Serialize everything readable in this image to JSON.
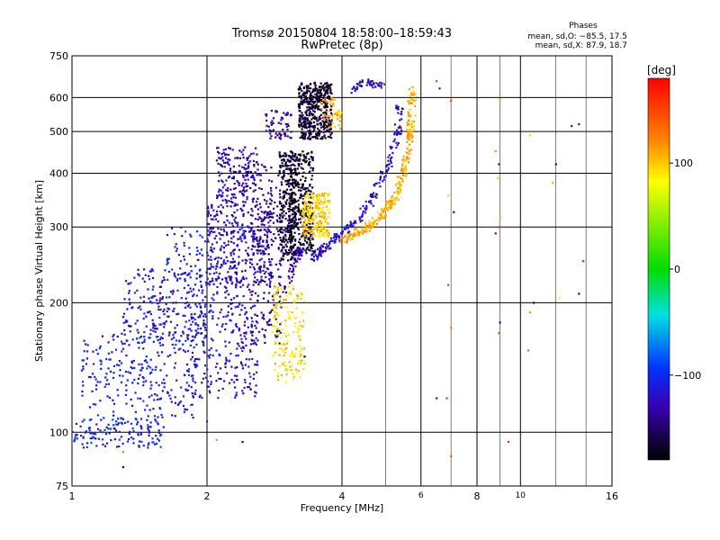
{
  "chart_data": {
    "type": "scatter",
    "title": "Tromsø 20150804 18:58:00–18:59:43",
    "subtitle": "RwPretec (8p)",
    "xlabel": "Frequency [MHz]",
    "ylabel": "Stationary phase Virtual Height [km]",
    "xscale": "log",
    "yscale": "log",
    "xlim": [
      1,
      16
    ],
    "ylim": [
      75,
      750
    ],
    "xticks": [
      1,
      2,
      4,
      8,
      16
    ],
    "xtick_labels": [
      "1",
      "2",
      "4",
      "8",
      "16"
    ],
    "xminor_ticks": [
      6,
      10
    ],
    "xminor_labels": [
      "6",
      "10"
    ],
    "yticks": [
      75,
      100,
      200,
      300,
      400,
      500,
      600,
      750
    ],
    "ytick_labels": [
      "75",
      "100",
      "200",
      "300",
      "400",
      "500",
      "600",
      "750"
    ],
    "phase_box": {
      "title": "Phases",
      "line1": "mean, sd,O: −85.5, 17.5",
      "line2": "mean, sd,X:  87.9, 18.7"
    },
    "colorbar": {
      "label": "[deg]",
      "range": [
        -180,
        180
      ],
      "ticks": [
        100,
        0,
        -100
      ],
      "tick_labels": [
        "100",
        "0",
        "−100"
      ]
    },
    "grid": true,
    "series": [
      {
        "clusters": [
          {
            "f": [
              1.0,
              1.6
            ],
            "h": [
              92,
              108
            ],
            "phase": -105,
            "n": 140
          },
          {
            "f": [
              1.05,
              1.9
            ],
            "h": [
              108,
              170
            ],
            "phase": -110,
            "n": 240
          },
          {
            "f": [
              1.3,
              2.0
            ],
            "h": [
              160,
              240
            ],
            "phase": -112,
            "n": 260
          },
          {
            "f": [
              1.6,
              2.1
            ],
            "h": [
              230,
              300
            ],
            "phase": -110,
            "n": 60
          },
          {
            "f": [
              1.8,
              2.6
            ],
            "h": [
              120,
              230
            ],
            "phase": -115,
            "n": 300
          },
          {
            "f": [
              2.0,
              2.8
            ],
            "h": [
              220,
              340
            ],
            "phase": -125,
            "n": 350
          },
          {
            "f": [
              2.1,
              2.6
            ],
            "h": [
              340,
              460
            ],
            "phase": -130,
            "n": 180
          },
          {
            "f": [
              2.5,
              2.95
            ],
            "h": [
              160,
              420
            ],
            "phase": -140,
            "n": 200
          },
          {
            "f": [
              2.7,
              3.1
            ],
            "h": [
              480,
              560
            ],
            "phase": -135,
            "n": 60
          },
          {
            "f": [
              2.9,
              3.15
            ],
            "h": [
              250,
              450
            ],
            "phase": -165,
            "n": 260
          },
          {
            "f": [
              3.05,
              3.45
            ],
            "h": [
              260,
              450
            ],
            "phase": -172,
            "n": 330
          },
          {
            "f": [
              3.2,
              3.8
            ],
            "h": [
              480,
              650
            ],
            "phase": -168,
            "n": 450
          },
          {
            "f": [
              2.8,
              3.3
            ],
            "h": [
              130,
              220
            ],
            "phase": 95,
            "n": 160
          },
          {
            "f": [
              3.25,
              3.75
            ],
            "h": [
              285,
              360
            ],
            "phase": 100,
            "n": 220
          },
          {
            "f": [
              3.6,
              4.0
            ],
            "h": [
              500,
              600
            ],
            "phase": 110,
            "n": 45
          }
        ],
        "curves": [
          {
            "points": [
              [
                3.45,
                255
              ],
              [
                3.6,
                265
              ],
              [
                3.85,
                280
              ],
              [
                4.2,
                300
              ],
              [
                4.6,
                340
              ],
              [
                5.0,
                400
              ],
              [
                5.3,
                480
              ],
              [
                5.4,
                580
              ]
            ],
            "phase": -120,
            "n": 220
          },
          {
            "points": [
              [
                4.0,
                280
              ],
              [
                4.45,
                295
              ],
              [
                4.9,
                320
              ],
              [
                5.25,
                350
              ],
              [
                5.55,
                420
              ],
              [
                5.7,
                520
              ],
              [
                5.75,
                640
              ]
            ],
            "phase": 110,
            "n": 300
          },
          {
            "points": [
              [
                3.0,
                210
              ],
              [
                3.08,
                240
              ],
              [
                3.2,
                262
              ],
              [
                3.3,
                272
              ]
            ],
            "phase": -130,
            "n": 55
          },
          {
            "points": [
              [
                4.2,
                620
              ],
              [
                4.5,
                650
              ],
              [
                4.9,
                640
              ]
            ],
            "phase": -128,
            "n": 45
          }
        ],
        "isolated": [
          [
            6.5,
            655,
            150
          ],
          [
            6.6,
            630,
            -120
          ],
          [
            7.0,
            590,
            150
          ],
          [
            6.9,
            355,
            100
          ],
          [
            7.1,
            325,
            -140
          ],
          [
            6.9,
            220,
            160
          ],
          [
            7.0,
            175,
            130
          ],
          [
            6.85,
            120,
            160
          ],
          [
            6.5,
            120,
            -130
          ],
          [
            7.0,
            88,
            140
          ],
          [
            9.0,
            590,
            110
          ],
          [
            8.8,
            450,
            30
          ],
          [
            8.95,
            420,
            -130
          ],
          [
            8.9,
            390,
            60
          ],
          [
            9.0,
            315,
            110
          ],
          [
            8.95,
            300,
            160
          ],
          [
            8.8,
            290,
            -120
          ],
          [
            9.0,
            180,
            -130
          ],
          [
            8.95,
            170,
            150
          ],
          [
            9.4,
            95,
            160
          ],
          [
            10.5,
            490,
            100
          ],
          [
            10.7,
            200,
            -150
          ],
          [
            10.5,
            190,
            120
          ],
          [
            10.4,
            155,
            140
          ],
          [
            11.8,
            380,
            110
          ],
          [
            12.0,
            420,
            -140
          ],
          [
            12.2,
            205,
            80
          ],
          [
            13.5,
            520,
            -120
          ],
          [
            13.0,
            515,
            -130
          ],
          [
            13.8,
            250,
            170
          ],
          [
            13.5,
            210,
            -140
          ],
          [
            1.3,
            90,
            130
          ],
          [
            1.3,
            83,
            -150
          ],
          [
            1.7,
            117,
            -120
          ],
          [
            2.0,
            106,
            -100
          ],
          [
            2.1,
            96,
            120
          ],
          [
            2.4,
            95,
            -140
          ],
          [
            3.3,
            150,
            -170
          ]
        ]
      }
    ]
  }
}
